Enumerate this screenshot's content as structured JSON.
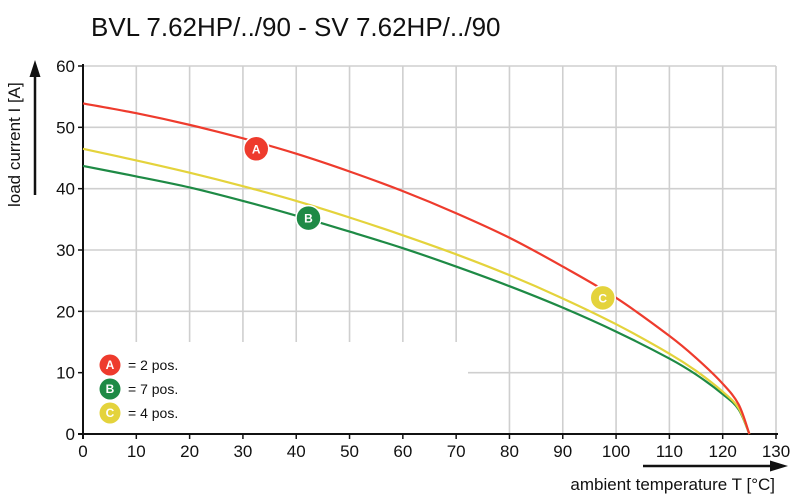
{
  "chart_data": {
    "type": "line",
    "title": "BVL 7.62HP/../90 - SV 7.62HP/../90",
    "xlabel": "ambient temperature T [°C]",
    "ylabel": "load current I [A]",
    "xlim": [
      0,
      130
    ],
    "ylim": [
      0,
      60
    ],
    "xticks": [
      0,
      10,
      20,
      30,
      40,
      50,
      60,
      70,
      80,
      90,
      100,
      110,
      120,
      130
    ],
    "yticks": [
      0,
      10,
      20,
      30,
      40,
      50,
      60
    ],
    "grid": true,
    "legend_position": "bottom-left",
    "series": [
      {
        "name": "A",
        "legend_label": "= 2 pos.",
        "color": "#ee3b2d",
        "x": [
          0,
          10,
          20,
          30,
          40,
          50,
          60,
          70,
          80,
          90,
          100,
          110,
          115,
          120,
          123,
          125
        ],
        "y": [
          53.9,
          52.3,
          50.4,
          48.2,
          45.7,
          42.8,
          39.6,
          36.0,
          32.0,
          27.3,
          22.2,
          16.0,
          12.4,
          8.2,
          4.8,
          0
        ],
        "marker": {
          "x": 32.5,
          "y": 46.5
        }
      },
      {
        "name": "B",
        "legend_label": "= 7 pos.",
        "color": "#1e8a45",
        "x": [
          0,
          10,
          20,
          30,
          40,
          50,
          60,
          70,
          80,
          90,
          100,
          110,
          115,
          120,
          123,
          125
        ],
        "y": [
          43.7,
          42.0,
          40.2,
          38.0,
          35.6,
          33.0,
          30.3,
          27.3,
          24.1,
          20.6,
          16.7,
          12.3,
          9.7,
          6.5,
          4.0,
          0
        ],
        "marker": {
          "x": 42.3,
          "y": 35.2
        }
      },
      {
        "name": "C",
        "legend_label": "= 4 pos.",
        "color": "#e4d33c",
        "x": [
          0,
          10,
          20,
          30,
          40,
          50,
          60,
          70,
          80,
          90,
          100,
          110,
          115,
          120,
          123,
          125
        ],
        "y": [
          46.5,
          44.6,
          42.6,
          40.4,
          38.0,
          35.3,
          32.4,
          29.3,
          25.9,
          22.1,
          17.9,
          13.1,
          10.3,
          6.9,
          4.2,
          0
        ],
        "marker": {
          "x": 97.5,
          "y": 22.2
        }
      }
    ]
  }
}
